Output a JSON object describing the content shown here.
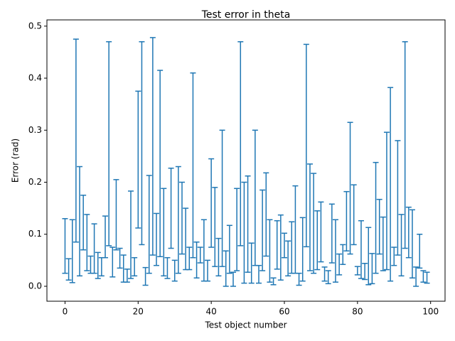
{
  "chart_data": {
    "type": "errorbar",
    "title": "Test error in theta",
    "xlabel": "Test object number",
    "ylabel": "Error (rad)",
    "color": "#1f77b4",
    "x": [
      0,
      1,
      2,
      3,
      4,
      5,
      6,
      7,
      8,
      9,
      10,
      11,
      12,
      13,
      14,
      15,
      16,
      17,
      18,
      19,
      20,
      21,
      22,
      23,
      24,
      25,
      26,
      27,
      28,
      29,
      30,
      31,
      32,
      33,
      34,
      35,
      36,
      37,
      38,
      39,
      40,
      41,
      42,
      43,
      44,
      45,
      46,
      47,
      48,
      49,
      50,
      51,
      52,
      53,
      54,
      55,
      56,
      57,
      58,
      59,
      60,
      61,
      62,
      63,
      64,
      65,
      66,
      67,
      68,
      69,
      70,
      71,
      72,
      73,
      74,
      75,
      76,
      77,
      78,
      79,
      80,
      81,
      82,
      83,
      84,
      85,
      86,
      87,
      88,
      89,
      90,
      91,
      92,
      93,
      94,
      95,
      96,
      97,
      98,
      99
    ],
    "upper": [
      0.13,
      0.053,
      0.128,
      0.475,
      0.23,
      0.175,
      0.138,
      0.058,
      0.12,
      0.065,
      0.055,
      0.135,
      0.47,
      0.075,
      0.205,
      0.073,
      0.06,
      0.033,
      0.183,
      0.055,
      0.375,
      0.47,
      0.036,
      0.213,
      0.478,
      0.14,
      0.415,
      0.188,
      0.055,
      0.227,
      0.05,
      0.23,
      0.2,
      0.15,
      0.075,
      0.41,
      0.085,
      0.075,
      0.128,
      0.05,
      0.245,
      0.19,
      0.092,
      0.3,
      0.068,
      0.117,
      0.027,
      0.188,
      0.47,
      0.2,
      0.212,
      0.083,
      0.3,
      0.04,
      0.185,
      0.218,
      0.128,
      0.016,
      0.126,
      0.137,
      0.102,
      0.087,
      0.124,
      0.193,
      0.025,
      0.132,
      0.465,
      0.235,
      0.217,
      0.145,
      0.162,
      0.037,
      0.03,
      0.158,
      0.128,
      0.062,
      0.08,
      0.182,
      0.315,
      0.195,
      0.038,
      0.126,
      0.044,
      0.113,
      0.063,
      0.238,
      0.167,
      0.133,
      0.296,
      0.382,
      0.075,
      0.28,
      0.138,
      0.47,
      0.152,
      0.147,
      0.037,
      0.1,
      0.03,
      0.027
    ],
    "lower": [
      0.025,
      0.012,
      0.007,
      0.085,
      0.02,
      0.07,
      0.03,
      0.025,
      0.025,
      0.015,
      0.02,
      0.055,
      0.078,
      0.018,
      0.07,
      0.035,
      0.008,
      0.008,
      0.015,
      0.02,
      0.112,
      0.08,
      0.002,
      0.025,
      0.06,
      0.04,
      0.057,
      0.02,
      0.015,
      0.073,
      0.01,
      0.025,
      0.062,
      0.032,
      0.032,
      0.055,
      0.016,
      0.045,
      0.01,
      0.01,
      0.075,
      0.038,
      0.02,
      0.038,
      0.0,
      0.025,
      0.0,
      0.03,
      0.078,
      0.006,
      0.027,
      0.006,
      0.04,
      0.006,
      0.03,
      0.058,
      0.008,
      0.003,
      0.033,
      0.012,
      0.055,
      0.02,
      0.025,
      0.025,
      0.002,
      0.01,
      0.076,
      0.03,
      0.025,
      0.032,
      0.047,
      0.01,
      0.005,
      0.045,
      0.008,
      0.022,
      0.042,
      0.068,
      0.062,
      0.08,
      0.022,
      0.015,
      0.013,
      0.003,
      0.005,
      0.025,
      0.062,
      0.03,
      0.032,
      0.01,
      0.04,
      0.06,
      0.02,
      0.073,
      0.055,
      0.016,
      0.0,
      0.035,
      0.008,
      0.006
    ],
    "xlim": [
      -4.95,
      103.95
    ],
    "ylim": [
      -0.0287,
      0.512
    ],
    "xticks": [
      0,
      20,
      40,
      60,
      80,
      100
    ],
    "yticks": [
      {
        "value": 0,
        "label": "0.0"
      },
      0.1,
      0.2,
      0.3,
      0.4,
      0.5
    ]
  }
}
